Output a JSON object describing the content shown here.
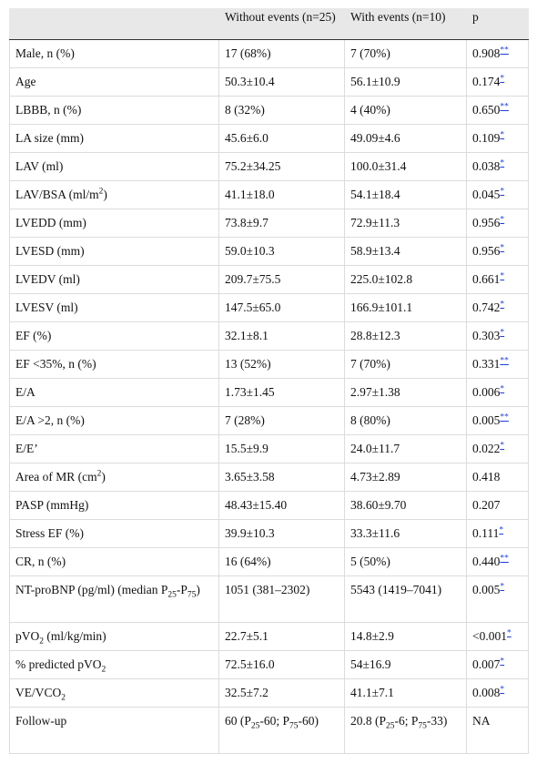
{
  "table": {
    "header": [
      "Without events (n=25)",
      "With events (n=10)",
      "p"
    ],
    "rows": [
      {
        "label": "Male, n (%)",
        "without": "17 (68%)",
        "with": "7 (70%)",
        "p": "0.908",
        "note": "**"
      },
      {
        "label": "Age",
        "without": "50.3±10.4",
        "with": "56.1±10.9",
        "p": "0.174",
        "note": "*"
      },
      {
        "label": "LBBB, n (%)",
        "without": "8 (32%)",
        "with": "4 (40%)",
        "p": "0.650",
        "note": "**"
      },
      {
        "label": "LA size (mm)",
        "without": "45.6±6.0",
        "with": "49.09±4.6",
        "p": "0.109",
        "note": "*"
      },
      {
        "label": "LAV (ml)",
        "without": "75.2±34.25",
        "with": "100.0±31.4",
        "p": "0.038",
        "note": "*"
      },
      {
        "label": [
          "LAV/BSA (ml/m",
          {
            "sup": "2"
          },
          ")"
        ],
        "without": "41.1±18.0",
        "with": "54.1±18.4",
        "p": "0.045",
        "note": "*"
      },
      {
        "label": "LVEDD (mm)",
        "without": "73.8±9.7",
        "with": "72.9±11.3",
        "p": "0.956",
        "note": "*"
      },
      {
        "label": "LVESD (mm)",
        "without": "59.0±10.3",
        "with": "58.9±13.4",
        "p": "0.956",
        "note": "*"
      },
      {
        "label": "LVEDV (ml)",
        "without": "209.7±75.5",
        "with": "225.0±102.8",
        "p": "0.661",
        "note": "*"
      },
      {
        "label": "LVESV (ml)",
        "without": "147.5±65.0",
        "with": "166.9±101.1",
        "p": "0.742",
        "note": "*"
      },
      {
        "label": "EF (%)",
        "without": "32.1±8.1",
        "with": "28.8±12.3",
        "p": "0.303",
        "note": "*"
      },
      {
        "label": "EF <35%, n (%)",
        "without": "13 (52%)",
        "with": "7 (70%)",
        "p": "0.331",
        "note": "**"
      },
      {
        "label": "E/A",
        "without": "1.73±1.45",
        "with": "2.97±1.38",
        "p": "0.006",
        "note": "*"
      },
      {
        "label": "E/A >2, n (%)",
        "without": "7 (28%)",
        "with": "8 (80%)",
        "p": "0.005",
        "note": "**"
      },
      {
        "label": "E/E’",
        "without": "15.5±9.9",
        "with": "24.0±11.7",
        "p": "0.022",
        "note": "*"
      },
      {
        "label": [
          "Area of MR (cm",
          {
            "sup": "2"
          },
          ")"
        ],
        "without": "3.65±3.58",
        "with": "4.73±2.89",
        "p": "0.418"
      },
      {
        "label": "PASP (mmHg)",
        "without": "48.43±15.40",
        "with": "38.60±9.70",
        "p": "0.207"
      },
      {
        "label": "Stress EF (%)",
        "without": "39.9±10.3",
        "with": "33.3±11.6",
        "p": "0.111",
        "note": "*"
      },
      {
        "label": "CR, n (%)",
        "without": "16 (64%)",
        "with": "5 (50%)",
        "p": "0.440",
        "note": "**"
      },
      {
        "label": [
          "NT-proBNP (pg/ml) (median P",
          {
            "sub": "25"
          },
          "-P",
          {
            "sub": "75"
          },
          ")"
        ],
        "without": "1051 (381–2302)",
        "with": "5543 (1419–7041)",
        "p": "0.005",
        "note": "*"
      },
      {
        "label": [
          "pVO",
          {
            "sub": "2"
          },
          " (ml/kg/min)"
        ],
        "without": "22.7±5.1",
        "with": "14.8±2.9",
        "p": "<0.001",
        "note": "*"
      },
      {
        "label": [
          "% predicted pVO",
          {
            "sub": "2"
          }
        ],
        "without": "72.5±16.0",
        "with": "54±16.9",
        "p": "0.007",
        "note": "*"
      },
      {
        "label": [
          "VE/VCO",
          {
            "sub": "2"
          }
        ],
        "without": "32.5±7.2",
        "with": "41.1±7.1",
        "p": "0.008",
        "note": "*"
      },
      {
        "label": "Follow-up",
        "without": [
          "60 (P",
          {
            "sub": "25"
          },
          "-60; P",
          {
            "sub": "75"
          },
          "-60)"
        ],
        "with": [
          "20.8 (P",
          {
            "sub": "25"
          },
          "-6; P",
          {
            "sub": "75"
          },
          "-33)"
        ],
        "p": "NA"
      }
    ]
  }
}
